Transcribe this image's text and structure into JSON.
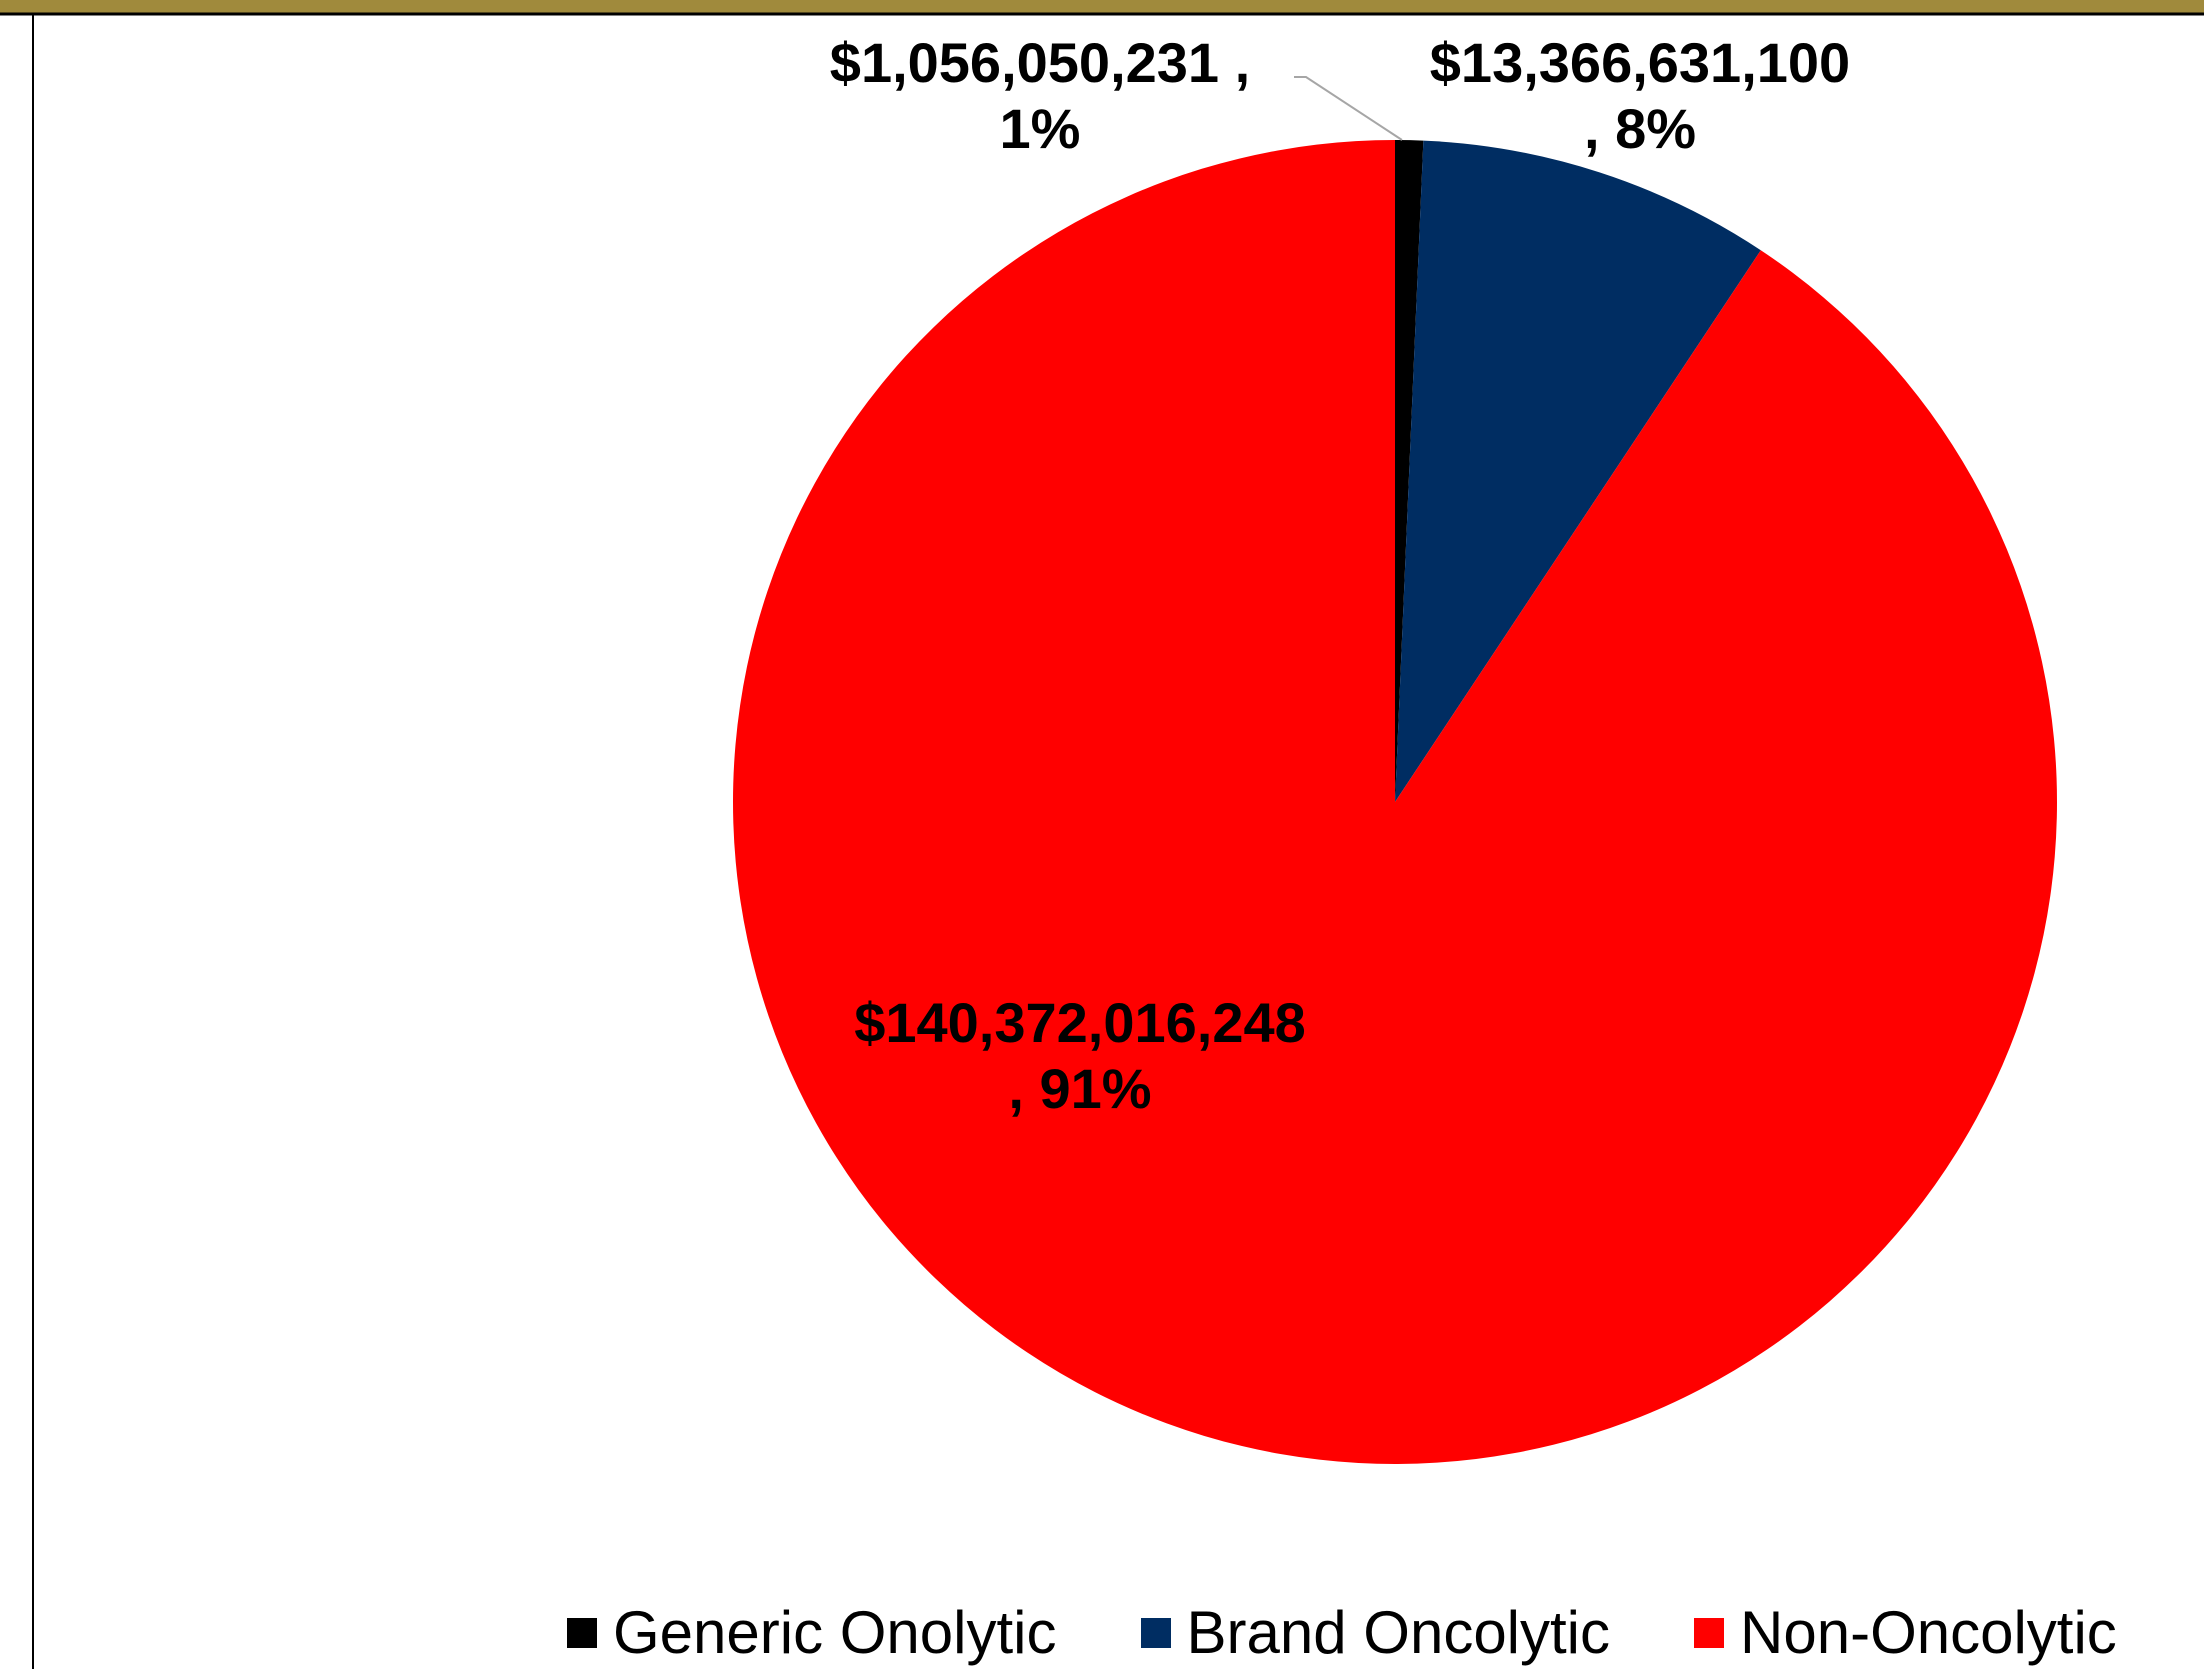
{
  "chart_data": {
    "type": "pie",
    "title": "",
    "categories": [
      "Generic Onolytic",
      "Brand Oncolytic",
      "Non-Oncolytic"
    ],
    "values": [
      1056050231,
      13366631100,
      140372016248
    ],
    "percent_labels": [
      "1%",
      "8%",
      "91%"
    ],
    "value_labels": [
      "$1,056,050,231",
      "$13,366,631,100",
      "$140,372,016,248"
    ],
    "colors": [
      "#000000",
      "#002D62",
      "#FF0000"
    ],
    "start_angle_deg": 0,
    "direction": "clockwise",
    "legend_position": "bottom"
  },
  "labels": [
    {
      "line1": "$1,056,050,231 ,",
      "line2": "1%"
    },
    {
      "line1": "$13,366,631,100",
      "line2": ", 8%"
    },
    {
      "line1": "$140,372,016,248",
      "line2": ", 91%"
    }
  ],
  "legend": [
    {
      "label": "Generic Onolytic",
      "color": "#000000"
    },
    {
      "label": "Brand Oncolytic",
      "color": "#002D62"
    },
    {
      "label": "Non-Oncolytic",
      "color": "#FF0000"
    }
  ],
  "header_band_color": "#A08A3C"
}
